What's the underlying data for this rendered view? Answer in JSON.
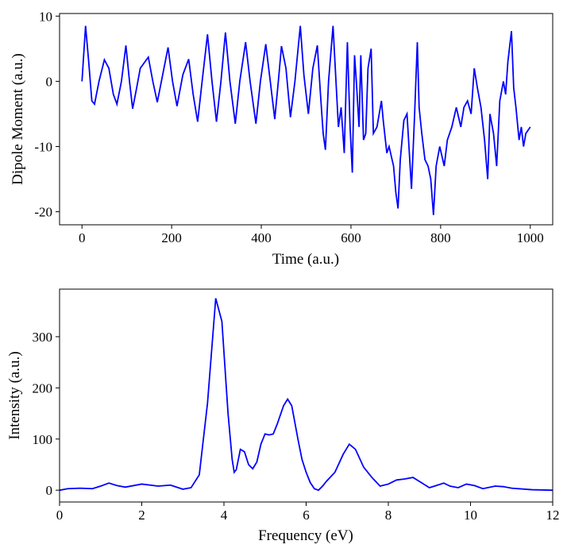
{
  "chart_data": [
    {
      "type": "line",
      "x_label": "Time (a.u.)",
      "y_label": "Dipole Moment (a.u.)",
      "xlim": [
        -50,
        1050
      ],
      "ylim": [
        -22,
        10.4
      ],
      "xticks": [
        0,
        200,
        400,
        600,
        800,
        1000
      ],
      "yticks": [
        10,
        0,
        -10,
        -20
      ],
      "series": [
        {
          "color": "#0000ff",
          "x": [
            0,
            8,
            15,
            22,
            28,
            38,
            50,
            60,
            70,
            78,
            88,
            98,
            106,
            113,
            122,
            130,
            148,
            158,
            168,
            180,
            192,
            202,
            212,
            225,
            238,
            248,
            258,
            268,
            280,
            290,
            300,
            310,
            320,
            330,
            342,
            352,
            365,
            375,
            388,
            398,
            410,
            420,
            430,
            438,
            445,
            455,
            465,
            475,
            487,
            495,
            505,
            515,
            525,
            532,
            538,
            543,
            550,
            560,
            565,
            572,
            578,
            585,
            592,
            598,
            603,
            608,
            612,
            618,
            622,
            628,
            633,
            638,
            645,
            650,
            658,
            668,
            672,
            680,
            685,
            695,
            700,
            705,
            710,
            718,
            725,
            735,
            742,
            748,
            752,
            758,
            765,
            772,
            778,
            784,
            790,
            798,
            808,
            815,
            825,
            835,
            845,
            852,
            860,
            868,
            875,
            882,
            890,
            898,
            905,
            910,
            918,
            925,
            932,
            940,
            945,
            950,
            958,
            963,
            968,
            975,
            980,
            985,
            990,
            1000
          ],
          "values": [
            0,
            8.5,
            3,
            -3,
            -3.5,
            0,
            3.3,
            2,
            -2,
            -3.5,
            0,
            5.5,
            0,
            -4.2,
            -1,
            2,
            3.7,
            0,
            -3.2,
            1,
            5.2,
            0,
            -3.8,
            1,
            3.4,
            -2,
            -6.2,
            0,
            7.2,
            0,
            -6.2,
            0,
            7.5,
            0,
            -6.5,
            0,
            6,
            0,
            -6.5,
            0,
            5.7,
            0,
            -5.8,
            0,
            5.4,
            2,
            -5.5,
            0,
            8.5,
            1,
            -5,
            2,
            5.5,
            -2,
            -8,
            -10.5,
            0,
            8.5,
            2,
            -7,
            -4,
            -11,
            6,
            -7,
            -14,
            4,
            0,
            -7,
            4,
            -9,
            -8,
            2,
            5,
            -8,
            -7,
            -3,
            -6,
            -11,
            -10,
            -13,
            -17,
            -19.5,
            -12,
            -6,
            -5,
            -16.5,
            -5,
            6,
            -4,
            -8,
            -12,
            -13,
            -15,
            -20.5,
            -13,
            -10,
            -13,
            -9,
            -7,
            -4,
            -7,
            -4,
            -3,
            -5,
            2,
            -1,
            -4,
            -9,
            -15,
            -5,
            -8,
            -13,
            -3,
            0,
            -2,
            3,
            7.7,
            -1,
            -4,
            -9,
            -7,
            -10,
            -8,
            -7
          ]
        }
      ]
    },
    {
      "type": "line",
      "x_label": "Frequency (eV)",
      "y_label": "Intensity (a.u.)",
      "xlim": [
        0,
        12
      ],
      "ylim": [
        -23,
        393
      ],
      "xticks": [
        0,
        2,
        4,
        6,
        8,
        10,
        12
      ],
      "yticks": [
        0,
        100,
        200,
        300
      ],
      "series": [
        {
          "color": "#0000ff",
          "x": [
            0,
            0.2,
            0.5,
            0.8,
            1.0,
            1.2,
            1.4,
            1.6,
            2.0,
            2.4,
            2.7,
            3.0,
            3.2,
            3.4,
            3.6,
            3.8,
            3.95,
            4.1,
            4.2,
            4.25,
            4.3,
            4.4,
            4.5,
            4.6,
            4.7,
            4.8,
            4.9,
            5.0,
            5.1,
            5.2,
            5.3,
            5.45,
            5.55,
            5.65,
            5.8,
            5.9,
            6.0,
            6.1,
            6.2,
            6.3,
            6.4,
            6.5,
            6.7,
            6.9,
            7.05,
            7.2,
            7.4,
            7.6,
            7.8,
            8.0,
            8.2,
            8.4,
            8.6,
            8.8,
            9.0,
            9.2,
            9.35,
            9.5,
            9.7,
            9.9,
            10.1,
            10.3,
            10.6,
            10.8,
            11.0,
            11.5,
            12
          ],
          "values": [
            0,
            3,
            4,
            3,
            8,
            14,
            9,
            6,
            12,
            8,
            10,
            2,
            5,
            30,
            170,
            375,
            330,
            150,
            60,
            35,
            40,
            80,
            75,
            50,
            42,
            55,
            90,
            110,
            108,
            110,
            130,
            165,
            178,
            165,
            100,
            60,
            35,
            15,
            3,
            0,
            8,
            18,
            35,
            70,
            90,
            80,
            45,
            25,
            8,
            12,
            20,
            22,
            25,
            15,
            5,
            10,
            14,
            8,
            5,
            12,
            9,
            3,
            8,
            7,
            4,
            1,
            0
          ]
        }
      ]
    }
  ]
}
